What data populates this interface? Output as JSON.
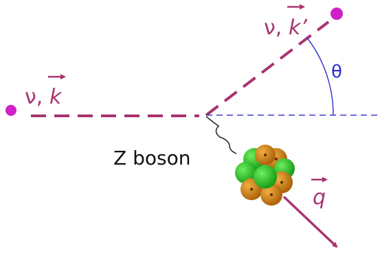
{
  "labels": {
    "incoming": {
      "particle": "ν,",
      "momentum": "k"
    },
    "outgoing": {
      "particle": "ν,",
      "momentum": "k’"
    },
    "angle": "θ",
    "mediator": "Z boson",
    "transfer": "q"
  }
}
